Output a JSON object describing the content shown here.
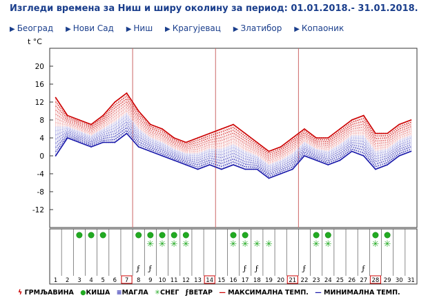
{
  "title": "Изгледи времена за Ниш и ширу околину за период: 01.01.2018.- 31.01.2018.",
  "nav": [
    {
      "label": "Београд"
    },
    {
      "label": "Нови Сад"
    },
    {
      "label": "Ниш"
    },
    {
      "label": "Крагујевац"
    },
    {
      "label": "Златибор"
    },
    {
      "label": "Копаоник"
    }
  ],
  "legend": {
    "thunder": "ГРМЉАВИНА",
    "rain": "КИША",
    "fog": "МАГЛА",
    "snow": "СНЕГ",
    "wind": "ВЕТАР",
    "max": "МАКСИМАЛНА ТЕМП.",
    "min": "МИНИМАЛНА ТЕМП."
  },
  "colors": {
    "max": "#cc0000",
    "min": "#1a1aaa",
    "rain": "#22aa22",
    "snow": "#22aa22",
    "grid": "#cc6666",
    "text": "#1a3e8c"
  },
  "chart_data": {
    "type": "area",
    "ylabel": "t °C",
    "yticks": [
      20,
      16,
      12,
      8,
      4,
      0,
      -4,
      -8,
      -12
    ],
    "ylim": [
      -16,
      24
    ],
    "x": [
      1,
      2,
      3,
      4,
      5,
      6,
      7,
      8,
      9,
      10,
      11,
      12,
      13,
      14,
      15,
      16,
      17,
      18,
      19,
      20,
      21,
      22,
      23,
      24,
      25,
      26,
      27,
      28,
      29,
      30,
      31
    ],
    "max": [
      13,
      9,
      8,
      7,
      9,
      12,
      14,
      10,
      7,
      6,
      4,
      3,
      4,
      5,
      6,
      7,
      5,
      3,
      1,
      2,
      4,
      6,
      4,
      4,
      6,
      8,
      9,
      5,
      5,
      7,
      8
    ],
    "min": [
      0,
      4,
      3,
      2,
      3,
      3,
      5,
      2,
      1,
      0,
      -1,
      -2,
      -3,
      -2,
      -3,
      -2,
      -3,
      -3,
      -5,
      -4,
      -3,
      0,
      -1,
      -2,
      -1,
      1,
      0,
      -3,
      -2,
      0,
      1
    ],
    "rain_days": [
      3,
      4,
      5,
      8,
      9,
      10,
      11,
      12,
      16,
      17,
      23,
      24,
      28,
      29
    ],
    "snow_days": [
      9,
      10,
      11,
      12,
      16,
      17,
      18,
      19,
      23,
      24,
      28,
      29
    ],
    "wind_days": [
      8,
      9,
      17,
      18,
      22,
      27
    ],
    "marked_days": [
      7,
      14,
      21,
      28
    ],
    "weekly_lines_after_day": [
      7,
      14,
      21
    ]
  }
}
